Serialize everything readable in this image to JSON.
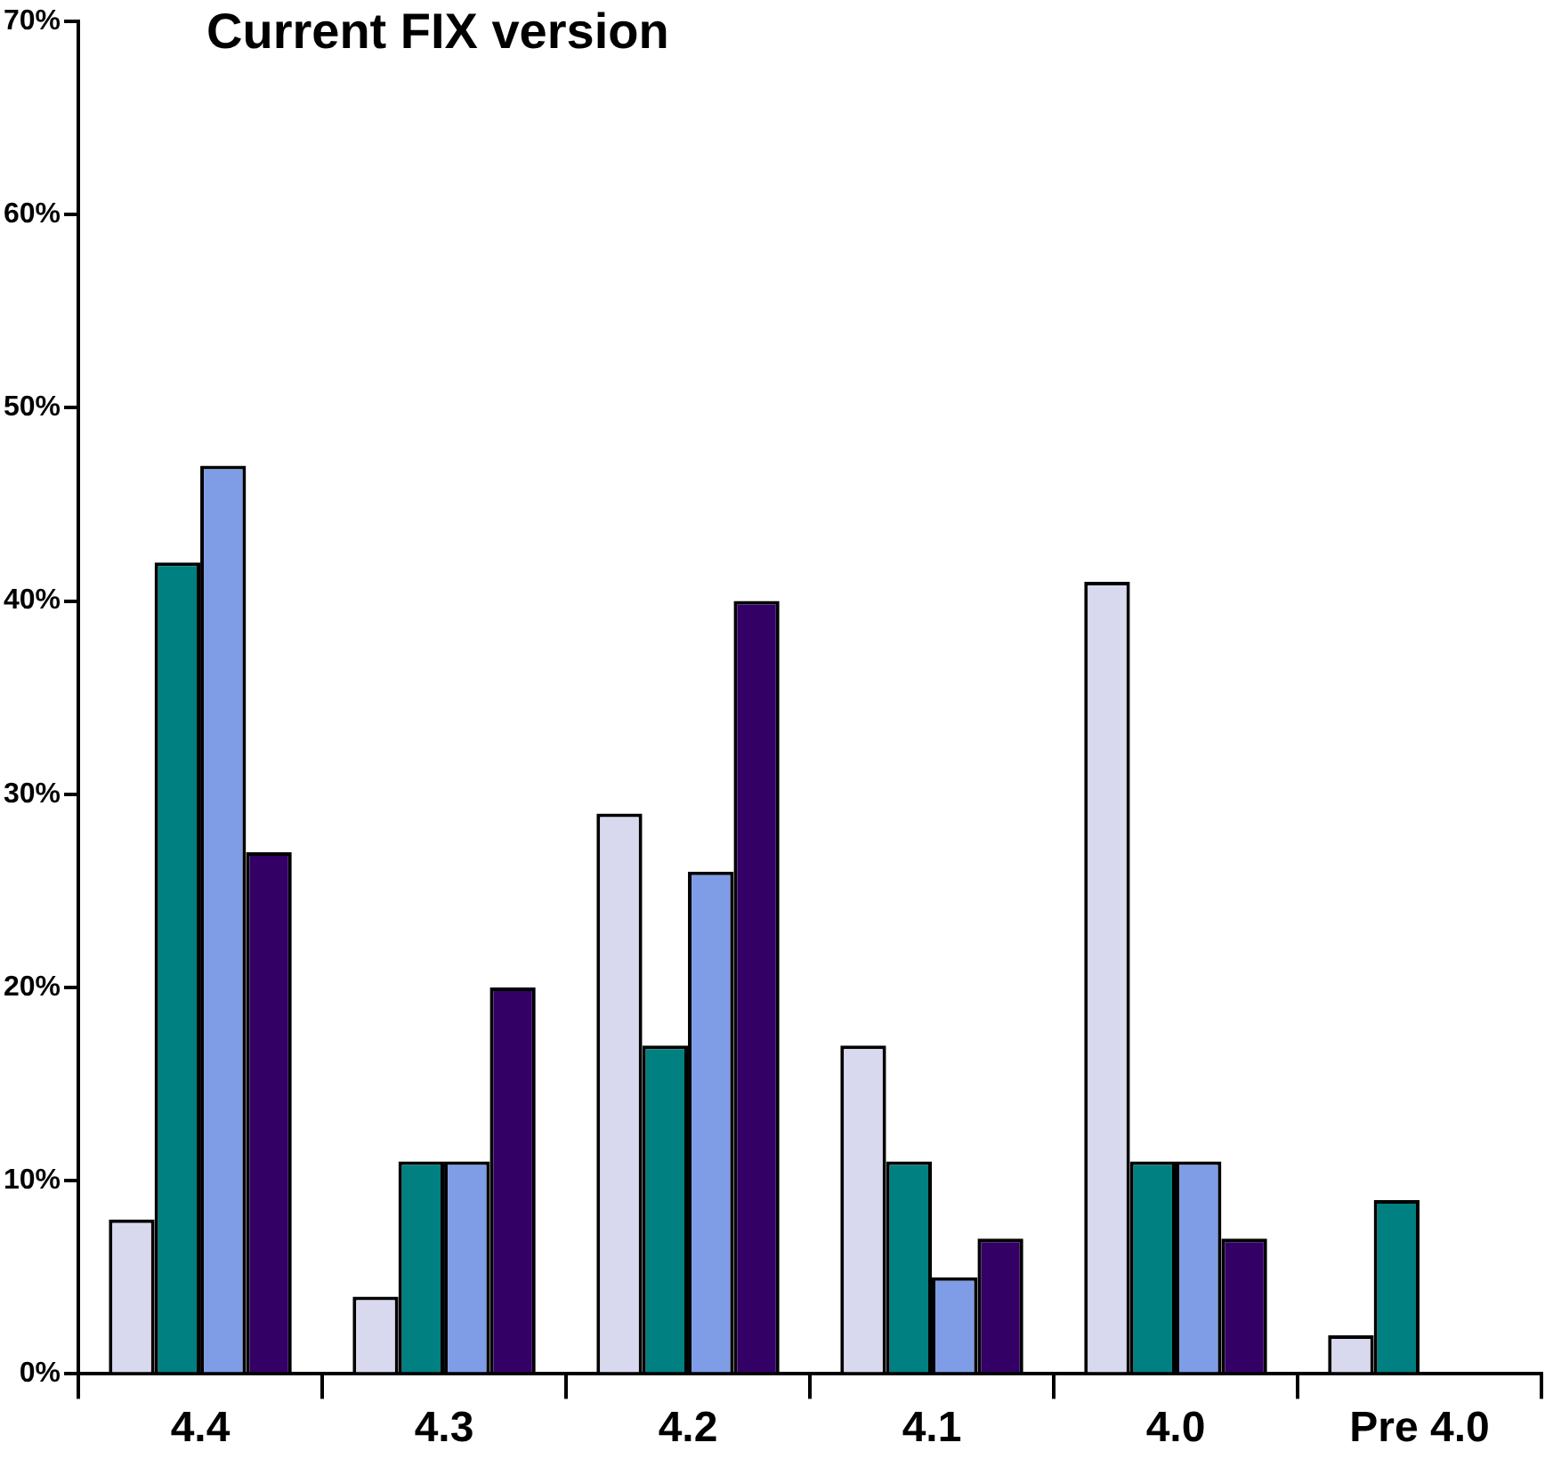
{
  "chart_data": {
    "type": "bar",
    "title": "Current FIX version",
    "categories": [
      "4.4",
      "4.3",
      "4.2",
      "4.1",
      "4.0",
      "Pre 4.0"
    ],
    "series": [
      {
        "color": "#d8d8ee",
        "values": [
          8,
          4,
          29,
          17,
          41,
          2
        ]
      },
      {
        "color": "#008080",
        "values": [
          42,
          11,
          17,
          11,
          11,
          9
        ]
      },
      {
        "color": "#7f9de6",
        "values": [
          47,
          11,
          26,
          5,
          11,
          0
        ]
      },
      {
        "color": "#330066",
        "values": [
          27,
          20,
          40,
          7,
          7,
          0
        ]
      }
    ],
    "ylim": [
      0,
      70
    ],
    "yticks": [
      {
        "value": 0,
        "label": "0%"
      },
      {
        "value": 10,
        "label": "10%"
      },
      {
        "value": 20,
        "label": "20%"
      },
      {
        "value": 30,
        "label": "30%"
      },
      {
        "value": 40,
        "label": "40%"
      },
      {
        "value": 50,
        "label": "50%"
      },
      {
        "value": 60,
        "label": "60%"
      },
      {
        "value": 70,
        "label": "70%"
      }
    ],
    "grid": false,
    "legend": false
  }
}
